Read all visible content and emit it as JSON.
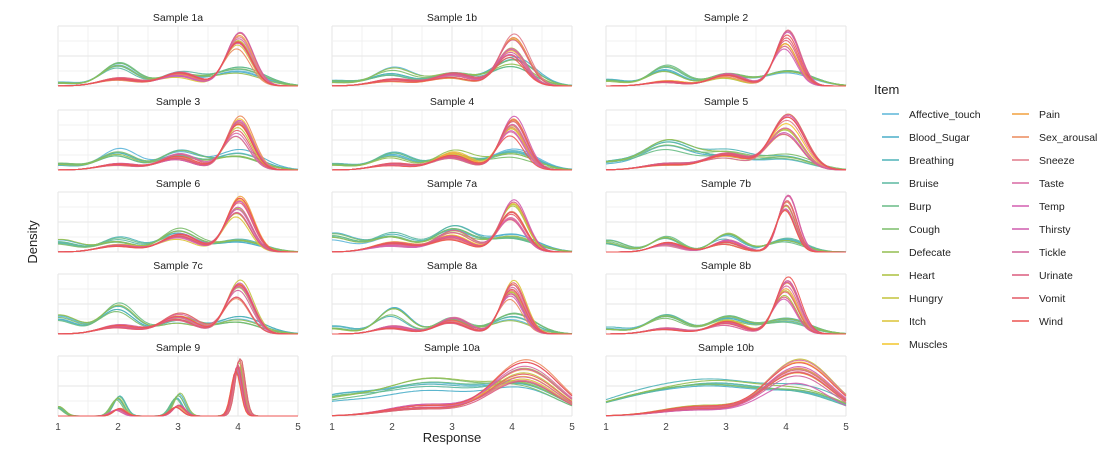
{
  "chart_data": {
    "type": "line",
    "title": "",
    "xlabel": "Response",
    "ylabel": "Density",
    "xlim": [
      1,
      5
    ],
    "x_ticks": [
      "1",
      "2",
      "3",
      "4",
      "5"
    ],
    "grid": true,
    "legend_position": "right",
    "legend": {
      "title": "Item",
      "items": [
        "Affective_touch",
        "Blood_Sugar",
        "Breathing",
        "Bruise",
        "Burp",
        "Cough",
        "Defecate",
        "Heart",
        "Hungry",
        "Itch",
        "Muscles",
        "Pain",
        "Sex_arousal",
        "Sneeze",
        "Taste",
        "Temp",
        "Thirsty",
        "Tickle",
        "Urinate",
        "Vomit",
        "Wind"
      ],
      "colors": [
        "#5BB5D9",
        "#4AAEC9",
        "#4FB3B8",
        "#5BB8A0",
        "#69BC85",
        "#7BBD6A",
        "#94BE50",
        "#ABC03E",
        "#C4C33B",
        "#DCC336",
        "#F3C52C",
        "#F2A03E",
        "#EB8A5C",
        "#E07A8A",
        "#D969A3",
        "#D45EB0",
        "#CF5BAE",
        "#D1609A",
        "#DB5C7E",
        "#E45A66",
        "#EC5451"
      ]
    },
    "facets": [
      {
        "title": "Sample 1a",
        "ymax": 1.0,
        "curves": [
          {
            "group": "cool",
            "peaks": [
              [
                1.0,
                0.06,
                0.3
              ],
              [
                2.0,
                0.36,
                0.28
              ],
              [
                3.0,
                0.2,
                0.32
              ],
              [
                4.0,
                0.28,
                0.4
              ]
            ],
            "jitter": 0.1
          },
          {
            "group": "warm",
            "peaks": [
              [
                2.0,
                0.12,
                0.32
              ],
              [
                3.0,
                0.2,
                0.3
              ],
              [
                4.0,
                0.78,
                0.22
              ]
            ],
            "jitter": 0.1
          }
        ]
      },
      {
        "title": "Sample 1b",
        "ymax": 1.0,
        "curves": [
          {
            "group": "cool",
            "peaks": [
              [
                1.0,
                0.08,
                0.35
              ],
              [
                2.0,
                0.26,
                0.32
              ],
              [
                3.0,
                0.22,
                0.34
              ],
              [
                4.0,
                0.4,
                0.35
              ]
            ],
            "jitter": 0.12
          },
          {
            "group": "warm",
            "peaks": [
              [
                2.0,
                0.1,
                0.34
              ],
              [
                3.0,
                0.18,
                0.32
              ],
              [
                4.0,
                0.72,
                0.24
              ]
            ],
            "jitter": 0.12
          }
        ]
      },
      {
        "title": "Sample 2",
        "ymax": 1.0,
        "curves": [
          {
            "group": "cool",
            "peaks": [
              [
                1.0,
                0.1,
                0.3
              ],
              [
                2.0,
                0.33,
                0.28
              ],
              [
                3.0,
                0.2,
                0.3
              ],
              [
                4.0,
                0.22,
                0.4
              ]
            ],
            "jitter": 0.1
          },
          {
            "group": "warm",
            "peaks": [
              [
                2.0,
                0.08,
                0.3
              ],
              [
                3.0,
                0.18,
                0.28
              ],
              [
                4.0,
                0.82,
                0.2
              ]
            ],
            "jitter": 0.1
          }
        ]
      },
      {
        "title": "Sample 3",
        "ymax": 1.0,
        "curves": [
          {
            "group": "cool",
            "peaks": [
              [
                1.0,
                0.1,
                0.35
              ],
              [
                2.0,
                0.32,
                0.3
              ],
              [
                3.0,
                0.28,
                0.32
              ],
              [
                4.0,
                0.3,
                0.38
              ]
            ],
            "jitter": 0.1
          },
          {
            "group": "warm",
            "peaks": [
              [
                2.0,
                0.1,
                0.32
              ],
              [
                3.0,
                0.24,
                0.3
              ],
              [
                4.0,
                0.78,
                0.22
              ]
            ],
            "jitter": 0.1
          }
        ]
      },
      {
        "title": "Sample 4",
        "ymax": 1.0,
        "curves": [
          {
            "group": "cool",
            "peaks": [
              [
                1.0,
                0.1,
                0.35
              ],
              [
                2.0,
                0.26,
                0.3
              ],
              [
                3.0,
                0.28,
                0.32
              ],
              [
                4.0,
                0.3,
                0.38
              ]
            ],
            "jitter": 0.1
          },
          {
            "group": "warm",
            "peaks": [
              [
                2.0,
                0.1,
                0.32
              ],
              [
                3.0,
                0.26,
                0.3
              ],
              [
                4.0,
                0.78,
                0.22
              ]
            ],
            "jitter": 0.1
          }
        ]
      },
      {
        "title": "Sample 5",
        "ymax": 1.0,
        "curves": [
          {
            "group": "cool",
            "peaks": [
              [
                1.0,
                0.12,
                0.4
              ],
              [
                2.0,
                0.42,
                0.4
              ],
              [
                3.0,
                0.28,
                0.4
              ],
              [
                4.0,
                0.22,
                0.4
              ]
            ],
            "jitter": 0.1
          },
          {
            "group": "warm",
            "peaks": [
              [
                2.0,
                0.1,
                0.38
              ],
              [
                3.0,
                0.26,
                0.35
              ],
              [
                4.0,
                0.8,
                0.28
              ]
            ],
            "jitter": 0.1
          }
        ]
      },
      {
        "title": "Sample 6",
        "ymax": 1.0,
        "curves": [
          {
            "group": "cool",
            "peaks": [
              [
                1.0,
                0.18,
                0.32
              ],
              [
                2.0,
                0.22,
                0.3
              ],
              [
                3.0,
                0.36,
                0.3
              ],
              [
                4.0,
                0.2,
                0.38
              ]
            ],
            "jitter": 0.1
          },
          {
            "group": "warm",
            "peaks": [
              [
                2.0,
                0.12,
                0.32
              ],
              [
                3.0,
                0.26,
                0.3
              ],
              [
                4.0,
                0.8,
                0.22
              ]
            ],
            "jitter": 0.1
          }
        ]
      },
      {
        "title": "Sample 7a",
        "ymax": 1.0,
        "curves": [
          {
            "group": "cool",
            "peaks": [
              [
                1.0,
                0.28,
                0.35
              ],
              [
                2.0,
                0.3,
                0.32
              ],
              [
                3.0,
                0.38,
                0.32
              ],
              [
                4.0,
                0.3,
                0.4
              ]
            ],
            "jitter": 0.1
          },
          {
            "group": "warm",
            "peaks": [
              [
                2.0,
                0.14,
                0.34
              ],
              [
                3.0,
                0.3,
                0.3
              ],
              [
                4.0,
                0.74,
                0.22
              ]
            ],
            "jitter": 0.12
          }
        ]
      },
      {
        "title": "Sample 7b",
        "ymax": 1.0,
        "curves": [
          {
            "group": "cool",
            "peaks": [
              [
                1.0,
                0.18,
                0.28
              ],
              [
                2.0,
                0.26,
                0.24
              ],
              [
                3.0,
                0.28,
                0.24
              ],
              [
                4.0,
                0.22,
                0.3
              ]
            ],
            "jitter": 0.08
          },
          {
            "group": "warm",
            "peaks": [
              [
                2.0,
                0.14,
                0.24
              ],
              [
                3.0,
                0.18,
                0.24
              ],
              [
                4.0,
                0.82,
                0.16
              ]
            ],
            "jitter": 0.1
          }
        ]
      },
      {
        "title": "Sample 7c",
        "ymax": 1.0,
        "curves": [
          {
            "group": "cool",
            "peaks": [
              [
                1.0,
                0.3,
                0.32
              ],
              [
                2.0,
                0.48,
                0.28
              ],
              [
                3.0,
                0.24,
                0.3
              ],
              [
                4.0,
                0.26,
                0.38
              ]
            ],
            "jitter": 0.1
          },
          {
            "group": "warm",
            "peaks": [
              [
                2.0,
                0.14,
                0.32
              ],
              [
                3.0,
                0.3,
                0.3
              ],
              [
                4.0,
                0.78,
                0.22
              ]
            ],
            "jitter": 0.1
          }
        ]
      },
      {
        "title": "Sample 8a",
        "ymax": 1.0,
        "curves": [
          {
            "group": "cool",
            "peaks": [
              [
                1.0,
                0.12,
                0.3
              ],
              [
                2.0,
                0.38,
                0.26
              ],
              [
                3.0,
                0.28,
                0.26
              ],
              [
                4.0,
                0.3,
                0.34
              ]
            ],
            "jitter": 0.1
          },
          {
            "group": "warm",
            "peaks": [
              [
                2.0,
                0.12,
                0.28
              ],
              [
                3.0,
                0.24,
                0.26
              ],
              [
                4.0,
                0.8,
                0.2
              ]
            ],
            "jitter": 0.1
          }
        ]
      },
      {
        "title": "Sample 8b",
        "ymax": 1.0,
        "curves": [
          {
            "group": "cool",
            "peaks": [
              [
                1.0,
                0.1,
                0.32
              ],
              [
                2.0,
                0.32,
                0.3
              ],
              [
                3.0,
                0.26,
                0.3
              ],
              [
                4.0,
                0.26,
                0.38
              ]
            ],
            "jitter": 0.1
          },
          {
            "group": "warm",
            "peaks": [
              [
                2.0,
                0.1,
                0.3
              ],
              [
                3.0,
                0.2,
                0.28
              ],
              [
                4.0,
                0.82,
                0.2
              ]
            ],
            "jitter": 0.1
          }
        ]
      },
      {
        "title": "Sample 9",
        "ymax": 1.0,
        "curves": [
          {
            "group": "cool",
            "peaks": [
              [
                1.0,
                0.16,
                0.1
              ],
              [
                2.0,
                0.32,
                0.1
              ],
              [
                3.0,
                0.36,
                0.1
              ],
              [
                4.0,
                0.82,
                0.09
              ]
            ],
            "jitter": 0.06
          },
          {
            "group": "warm",
            "peaks": [
              [
                2.0,
                0.12,
                0.1
              ],
              [
                3.0,
                0.18,
                0.1
              ],
              [
                4.0,
                0.92,
                0.08
              ]
            ],
            "jitter": 0.06
          }
        ]
      },
      {
        "title": "Sample 10a",
        "ymax": 1.0,
        "curves": [
          {
            "group": "cool",
            "peaks": [
              [
                1.0,
                0.26,
                0.6
              ],
              [
                2.6,
                0.54,
                0.8
              ],
              [
                4.2,
                0.5,
                0.6
              ]
            ],
            "jitter": 0.1
          },
          {
            "group": "warm",
            "peaks": [
              [
                2.5,
                0.16,
                0.6
              ],
              [
                4.2,
                0.78,
                0.55
              ]
            ],
            "jitter": 0.12
          }
        ]
      },
      {
        "title": "Sample 10b",
        "ymax": 1.0,
        "curves": [
          {
            "group": "cool",
            "peaks": [
              [
                1.6,
                0.3,
                0.8
              ],
              [
                3.0,
                0.56,
                0.8
              ],
              [
                4.4,
                0.38,
                0.6
              ]
            ],
            "jitter": 0.1
          },
          {
            "group": "warm",
            "peaks": [
              [
                2.5,
                0.14,
                0.6
              ],
              [
                4.2,
                0.8,
                0.55
              ]
            ],
            "jitter": 0.12
          }
        ]
      }
    ]
  }
}
